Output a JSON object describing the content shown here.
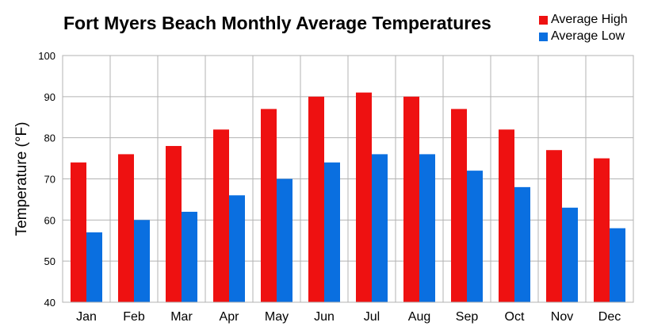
{
  "chart_data": {
    "type": "bar",
    "title": "Fort Myers Beach Monthly Average Temperatures",
    "xlabel": "",
    "ylabel": "Temperature (°F)",
    "ylim": [
      40,
      100
    ],
    "yticks": [
      40,
      50,
      60,
      70,
      80,
      90,
      100
    ],
    "grid": true,
    "legend_position": "top-right",
    "categories": [
      "Jan",
      "Feb",
      "Mar",
      "Apr",
      "May",
      "Jun",
      "Jul",
      "Aug",
      "Sep",
      "Oct",
      "Nov",
      "Dec"
    ],
    "series": [
      {
        "name": "Average High",
        "color": "#ee1111",
        "values": [
          74,
          76,
          78,
          82,
          87,
          90,
          91,
          90,
          87,
          82,
          77,
          75
        ]
      },
      {
        "name": "Average Low",
        "color": "#0a6fe0",
        "values": [
          57,
          60,
          62,
          66,
          70,
          74,
          76,
          76,
          72,
          68,
          63,
          58
        ]
      }
    ]
  }
}
